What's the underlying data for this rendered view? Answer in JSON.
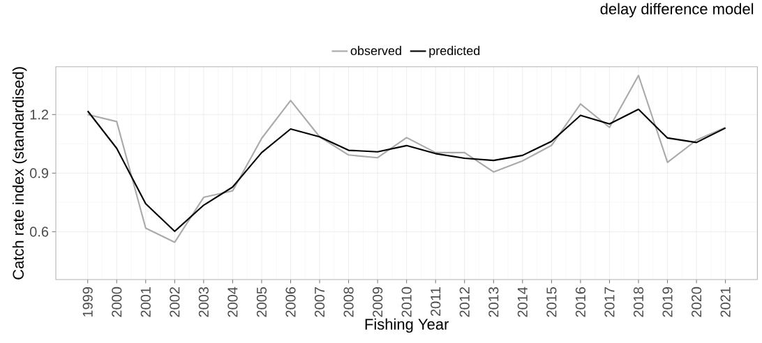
{
  "chart_data": {
    "type": "line",
    "title": "delay difference model",
    "xlabel": "Fishing Year",
    "ylabel": "Catch rate index (standardised)",
    "x": [
      1999,
      2000,
      2001,
      2002,
      2003,
      2004,
      2005,
      2006,
      2007,
      2008,
      2009,
      2010,
      2011,
      2012,
      2013,
      2014,
      2015,
      2016,
      2017,
      2018,
      2019,
      2020,
      2021
    ],
    "series": [
      {
        "name": "observed",
        "color": "#aaaaaa",
        "values": [
          1.2,
          1.164,
          0.618,
          0.546,
          0.776,
          0.809,
          1.078,
          1.272,
          1.086,
          0.993,
          0.979,
          1.082,
          1.005,
          1.005,
          0.906,
          0.963,
          1.042,
          1.254,
          1.134,
          1.4,
          0.955,
          1.069,
          1.134
        ]
      },
      {
        "name": "predicted",
        "color": "#000000",
        "values": [
          1.218,
          1.027,
          0.743,
          0.602,
          0.736,
          0.829,
          1.005,
          1.126,
          1.086,
          1.017,
          1.009,
          1.041,
          1.0,
          0.976,
          0.965,
          0.991,
          1.063,
          1.196,
          1.152,
          1.227,
          1.08,
          1.057,
          1.131
        ]
      }
    ],
    "xlim": [
      1997.9,
      2022.1
    ],
    "ylim": [
      0.355,
      1.445
    ],
    "xticks": [
      1999,
      2000,
      2001,
      2002,
      2003,
      2004,
      2005,
      2006,
      2007,
      2008,
      2009,
      2010,
      2011,
      2012,
      2013,
      2014,
      2015,
      2016,
      2017,
      2018,
      2019,
      2020,
      2021
    ],
    "yticks": [
      0.6,
      0.9,
      1.2
    ],
    "grid": true,
    "legend": "top"
  }
}
